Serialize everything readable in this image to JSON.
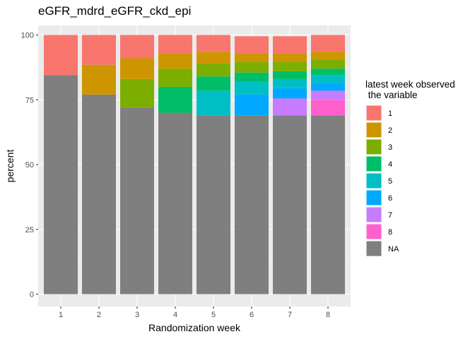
{
  "chart_data": {
    "type": "bar",
    "stacked": true,
    "title": "eGFR_mdrd_eGFR_ckd_epi",
    "xlabel": "Randomization week",
    "ylabel": "percent",
    "categories": [
      "1",
      "2",
      "3",
      "4",
      "5",
      "6",
      "7",
      "8"
    ],
    "ylim": [
      0,
      100
    ],
    "yticks": [
      0,
      25,
      50,
      75,
      100
    ],
    "grid": true,
    "legend_position": "right",
    "legend_title": [
      "latest week observed",
      " the variable"
    ],
    "series": [
      {
        "name": "NA",
        "color": "#7F7F7F",
        "values": [
          84.5,
          77.0,
          72.0,
          70.0,
          69.0,
          69.0,
          69.0,
          69.0
        ]
      },
      {
        "name": "8",
        "color": "#FF61CC",
        "values": [
          0,
          0,
          0,
          0,
          0,
          0,
          0,
          6.0
        ]
      },
      {
        "name": "7",
        "color": "#C77CFF",
        "values": [
          0,
          0,
          0,
          0,
          0,
          0,
          6.5,
          3.5
        ]
      },
      {
        "name": "6",
        "color": "#00A9FF",
        "values": [
          0,
          0,
          0,
          0,
          0,
          8.0,
          4.0,
          3.0
        ]
      },
      {
        "name": "5",
        "color": "#00BFC4",
        "values": [
          0,
          0,
          0,
          0,
          9.5,
          5.0,
          3.5,
          3.0
        ]
      },
      {
        "name": "4",
        "color": "#00BE67",
        "values": [
          0,
          0,
          0,
          10.0,
          5.5,
          3.5,
          3.0,
          2.5
        ]
      },
      {
        "name": "3",
        "color": "#7CAE00",
        "values": [
          0,
          0,
          11.0,
          7.0,
          5.0,
          4.0,
          3.5,
          3.5
        ]
      },
      {
        "name": "2",
        "color": "#CD9600",
        "values": [
          0,
          11.5,
          8.0,
          6.0,
          4.5,
          3.5,
          3.5,
          3.0
        ]
      },
      {
        "name": "1",
        "color": "#F8766D",
        "values": [
          15.5,
          11.5,
          9.0,
          7.0,
          6.5,
          6.5,
          6.5,
          6.5
        ]
      }
    ],
    "legend_order": [
      "1",
      "2",
      "3",
      "4",
      "5",
      "6",
      "7",
      "8",
      "NA"
    ]
  }
}
